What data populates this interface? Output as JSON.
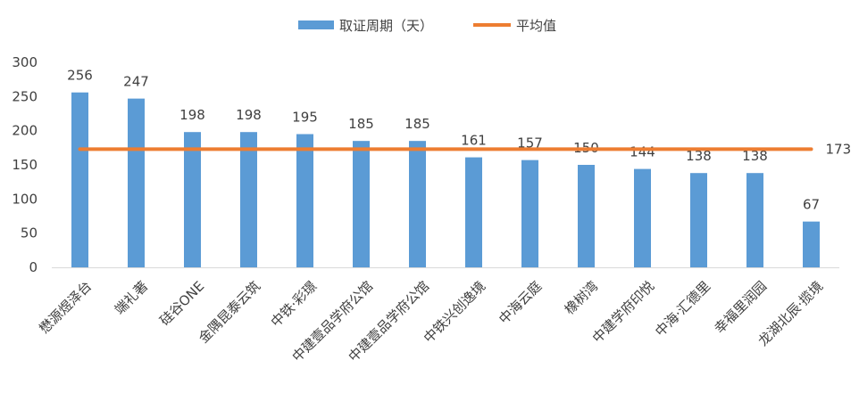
{
  "chart_data": {
    "type": "bar",
    "categories": [
      "懋源煜泽台",
      "端礼著",
      "硅谷ONE",
      "金隅昆泰云筑",
      "中铁·彩璟",
      "中建壹品学府公馆",
      "中建壹品学府公馆",
      "中铁兴创逸境",
      "中海云庭",
      "橡树湾",
      "中建学府印悦",
      "中海·汇德里",
      "幸福里润园",
      "龙湖北辰·揽境"
    ],
    "series": [
      {
        "name": "取证周期（天）",
        "type": "bar",
        "color": "#5B9BD5",
        "values": [
          256,
          247,
          198,
          198,
          195,
          185,
          185,
          161,
          157,
          150,
          144,
          138,
          138,
          67
        ]
      },
      {
        "name": "平均值",
        "type": "line",
        "color": "#ED7D31",
        "value": 173,
        "label": "173"
      }
    ],
    "y_ticks": [
      "0",
      "50",
      "100",
      "150",
      "200",
      "250",
      "300"
    ],
    "ylim": [
      0,
      300
    ],
    "grid": false,
    "legend": "top-center"
  }
}
